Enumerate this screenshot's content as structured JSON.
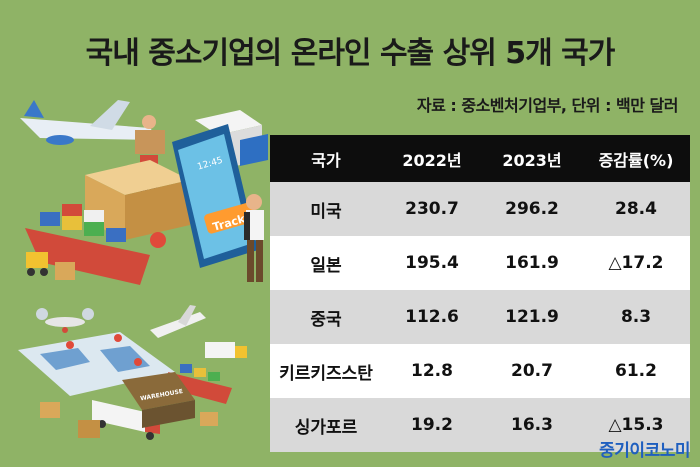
{
  "title": "국내 중소기업의 온라인 수출 상위 5개 국가",
  "source": "자료 : 중소벤처기업부, 단위 : 백만 달러",
  "brand": "중기이코노미",
  "illustration_text": {
    "track": "Track",
    "warehouse": "WAREHOUSE",
    "clock": "12:45"
  },
  "chart_data": {
    "type": "table",
    "columns": [
      "국가",
      "2022년",
      "2023년",
      "증감률(%)"
    ],
    "rows": [
      [
        "미국",
        "230.7",
        "296.2",
        "28.4"
      ],
      [
        "일본",
        "195.4",
        "161.9",
        "△17.2"
      ],
      [
        "중국",
        "112.6",
        "121.9",
        "8.3"
      ],
      [
        "키르키즈스탄",
        "12.8",
        "20.7",
        "61.2"
      ],
      [
        "싱가포르",
        "19.2",
        "16.3",
        "△15.3"
      ]
    ]
  }
}
